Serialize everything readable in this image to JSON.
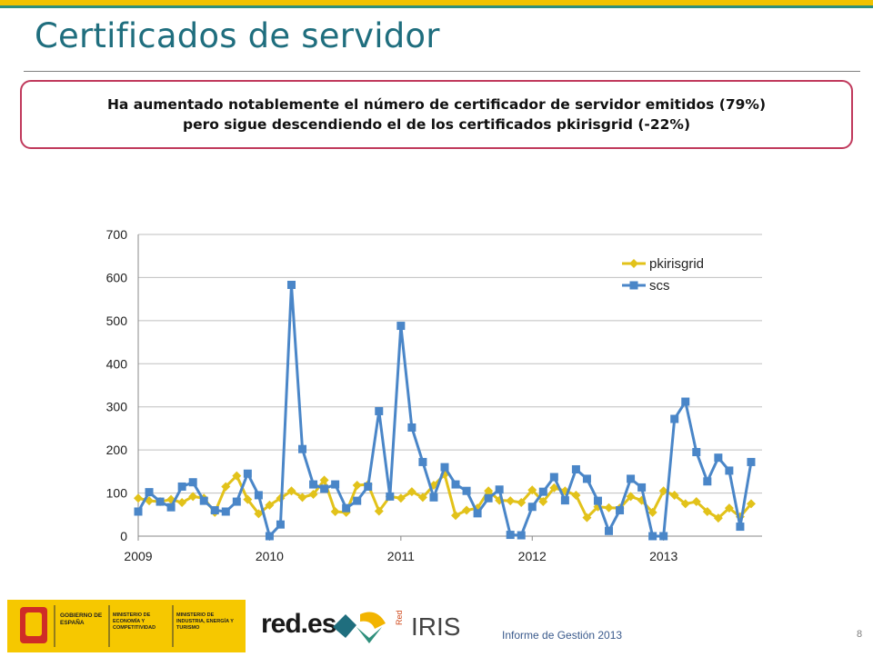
{
  "header": {
    "title": "Certificados de servidor"
  },
  "callout": {
    "line1": "Ha aumentado notablemente el número de certificador de servidor emitidos (79%)",
    "line2": "pero sigue descendiendo el de los certificados pkirisgrid (-22%)"
  },
  "footer": {
    "report": "Informe de Gestión 2013",
    "page": "8",
    "logos": {
      "gobierno": "GOBIERNO DE ESPAÑA",
      "ministerio1": "MINISTERIO DE ECONOMÍA Y COMPETITIVIDAD",
      "ministerio2": "MINISTERIO DE INDUSTRIA, ENERGÍA Y TURISMO",
      "redes": "red.es",
      "red": "Red",
      "iris": "IRIS"
    }
  },
  "chart_data": {
    "type": "line",
    "title": "",
    "xlabel": "",
    "ylabel": "",
    "ylim": [
      0,
      700
    ],
    "yticks": [
      0,
      100,
      200,
      300,
      400,
      500,
      600,
      700
    ],
    "xlim": [
      2009.0,
      2013.75
    ],
    "xticks": [
      "2009",
      "2010",
      "2011",
      "2012",
      "2013"
    ],
    "xtick_values": [
      2009,
      2010,
      2011,
      2012,
      2013
    ],
    "legend": "top-right",
    "grid": "horizontal",
    "x_start": 2009.0,
    "x_step_months": 1,
    "series": [
      {
        "name": "pkirisgrid",
        "color": "#e2c21a",
        "marker": "diamond",
        "values": [
          88,
          82,
          80,
          85,
          78,
          92,
          88,
          55,
          115,
          140,
          85,
          52,
          72,
          88,
          105,
          90,
          97,
          130,
          57,
          55,
          118,
          120,
          58,
          92,
          88,
          103,
          90,
          118,
          143,
          48,
          60,
          65,
          105,
          83,
          82,
          78,
          107,
          80,
          112,
          105,
          95,
          43,
          68,
          66,
          65,
          92,
          83,
          55,
          105,
          95,
          75,
          80,
          57,
          42,
          65,
          45,
          75
        ]
      },
      {
        "name": "scs",
        "color": "#4a86c8",
        "marker": "square",
        "values": [
          57,
          102,
          80,
          67,
          115,
          125,
          82,
          60,
          57,
          80,
          145,
          95,
          0,
          27,
          583,
          202,
          120,
          110,
          120,
          65,
          82,
          115,
          290,
          92,
          488,
          252,
          172,
          90,
          160,
          120,
          105,
          53,
          88,
          108,
          3,
          2,
          68,
          103,
          137,
          83,
          155,
          133,
          82,
          12,
          60,
          133,
          113,
          0,
          0,
          272,
          312,
          195,
          127,
          182,
          152,
          22,
          172
        ]
      }
    ]
  }
}
